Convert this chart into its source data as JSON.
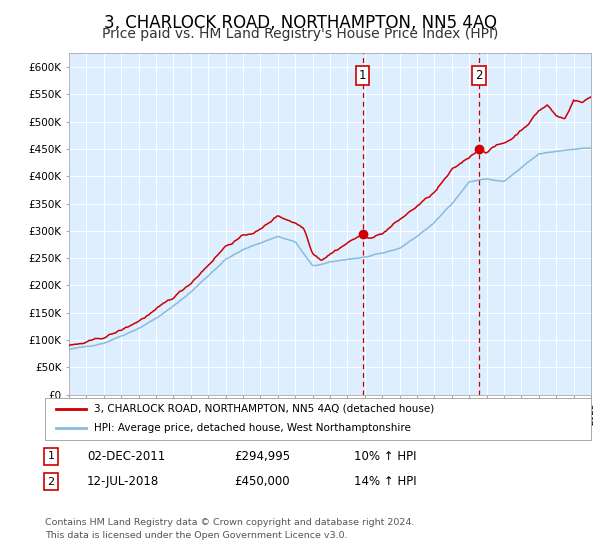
{
  "title": "3, CHARLOCK ROAD, NORTHAMPTON, NN5 4AQ",
  "subtitle": "Price paid vs. HM Land Registry's House Price Index (HPI)",
  "title_fontsize": 12,
  "subtitle_fontsize": 10,
  "background_color": "#ffffff",
  "plot_bg_color": "#ddeeff",
  "grid_color": "#ffffff",
  "red_line_color": "#cc0000",
  "blue_line_color": "#88bbdd",
  "marker1_price": 294995,
  "marker2_price": 450000,
  "marker1_year": 2011.92,
  "marker2_year": 2018.55,
  "legend_line1": "3, CHARLOCK ROAD, NORTHAMPTON, NN5 4AQ (detached house)",
  "legend_line2": "HPI: Average price, detached house, West Northamptonshire",
  "table_row1": [
    "1",
    "02-DEC-2011",
    "£294,995",
    "10% ↑ HPI"
  ],
  "table_row2": [
    "2",
    "12-JUL-2018",
    "£450,000",
    "14% ↑ HPI"
  ],
  "footer": "Contains HM Land Registry data © Crown copyright and database right 2024.\nThis data is licensed under the Open Government Licence v3.0.",
  "ylim": [
    0,
    625000
  ],
  "yticks": [
    0,
    50000,
    100000,
    150000,
    200000,
    250000,
    300000,
    350000,
    400000,
    450000,
    500000,
    550000,
    600000
  ],
  "ytick_labels": [
    "£0",
    "£50K",
    "£100K",
    "£150K",
    "£200K",
    "£250K",
    "£300K",
    "£350K",
    "£400K",
    "£450K",
    "£500K",
    "£550K",
    "£600K"
  ],
  "hpi_anchors_x": [
    1995,
    1996,
    1997,
    1998,
    1999,
    2000,
    2001,
    2002,
    2003,
    2004,
    2005,
    2006,
    2007,
    2008,
    2009,
    2010,
    2011,
    2012,
    2013,
    2014,
    2015,
    2016,
    2017,
    2018,
    2019,
    2020,
    2021,
    2022,
    2023,
    2024,
    2025
  ],
  "hpi_anchors_y": [
    82000,
    88000,
    95000,
    108000,
    122000,
    140000,
    162000,
    188000,
    218000,
    248000,
    265000,
    278000,
    290000,
    280000,
    235000,
    242000,
    248000,
    252000,
    258000,
    268000,
    290000,
    315000,
    350000,
    390000,
    395000,
    390000,
    415000,
    440000,
    445000,
    450000,
    452000
  ],
  "price_anchors_x": [
    1995,
    1996,
    1997,
    1998,
    1999,
    2000,
    2001,
    2002,
    2003,
    2004,
    2005,
    2006,
    2007,
    2008,
    2008.5,
    2009,
    2009.5,
    2010,
    2010.5,
    2011,
    2011.92,
    2012,
    2012.5,
    2013,
    2014,
    2015,
    2016,
    2017,
    2018,
    2018.55,
    2019,
    2019.5,
    2020,
    2020.5,
    2021,
    2021.5,
    2022,
    2022.5,
    2023,
    2023.5,
    2024,
    2024.5,
    2025
  ],
  "price_anchors_y": [
    88000,
    95000,
    105000,
    118000,
    135000,
    155000,
    178000,
    205000,
    238000,
    272000,
    290000,
    302000,
    328000,
    315000,
    305000,
    260000,
    248000,
    258000,
    268000,
    278000,
    294995,
    285000,
    290000,
    295000,
    320000,
    345000,
    370000,
    410000,
    435000,
    450000,
    445000,
    455000,
    460000,
    470000,
    485000,
    500000,
    520000,
    530000,
    510000,
    505000,
    540000,
    535000,
    545000
  ]
}
